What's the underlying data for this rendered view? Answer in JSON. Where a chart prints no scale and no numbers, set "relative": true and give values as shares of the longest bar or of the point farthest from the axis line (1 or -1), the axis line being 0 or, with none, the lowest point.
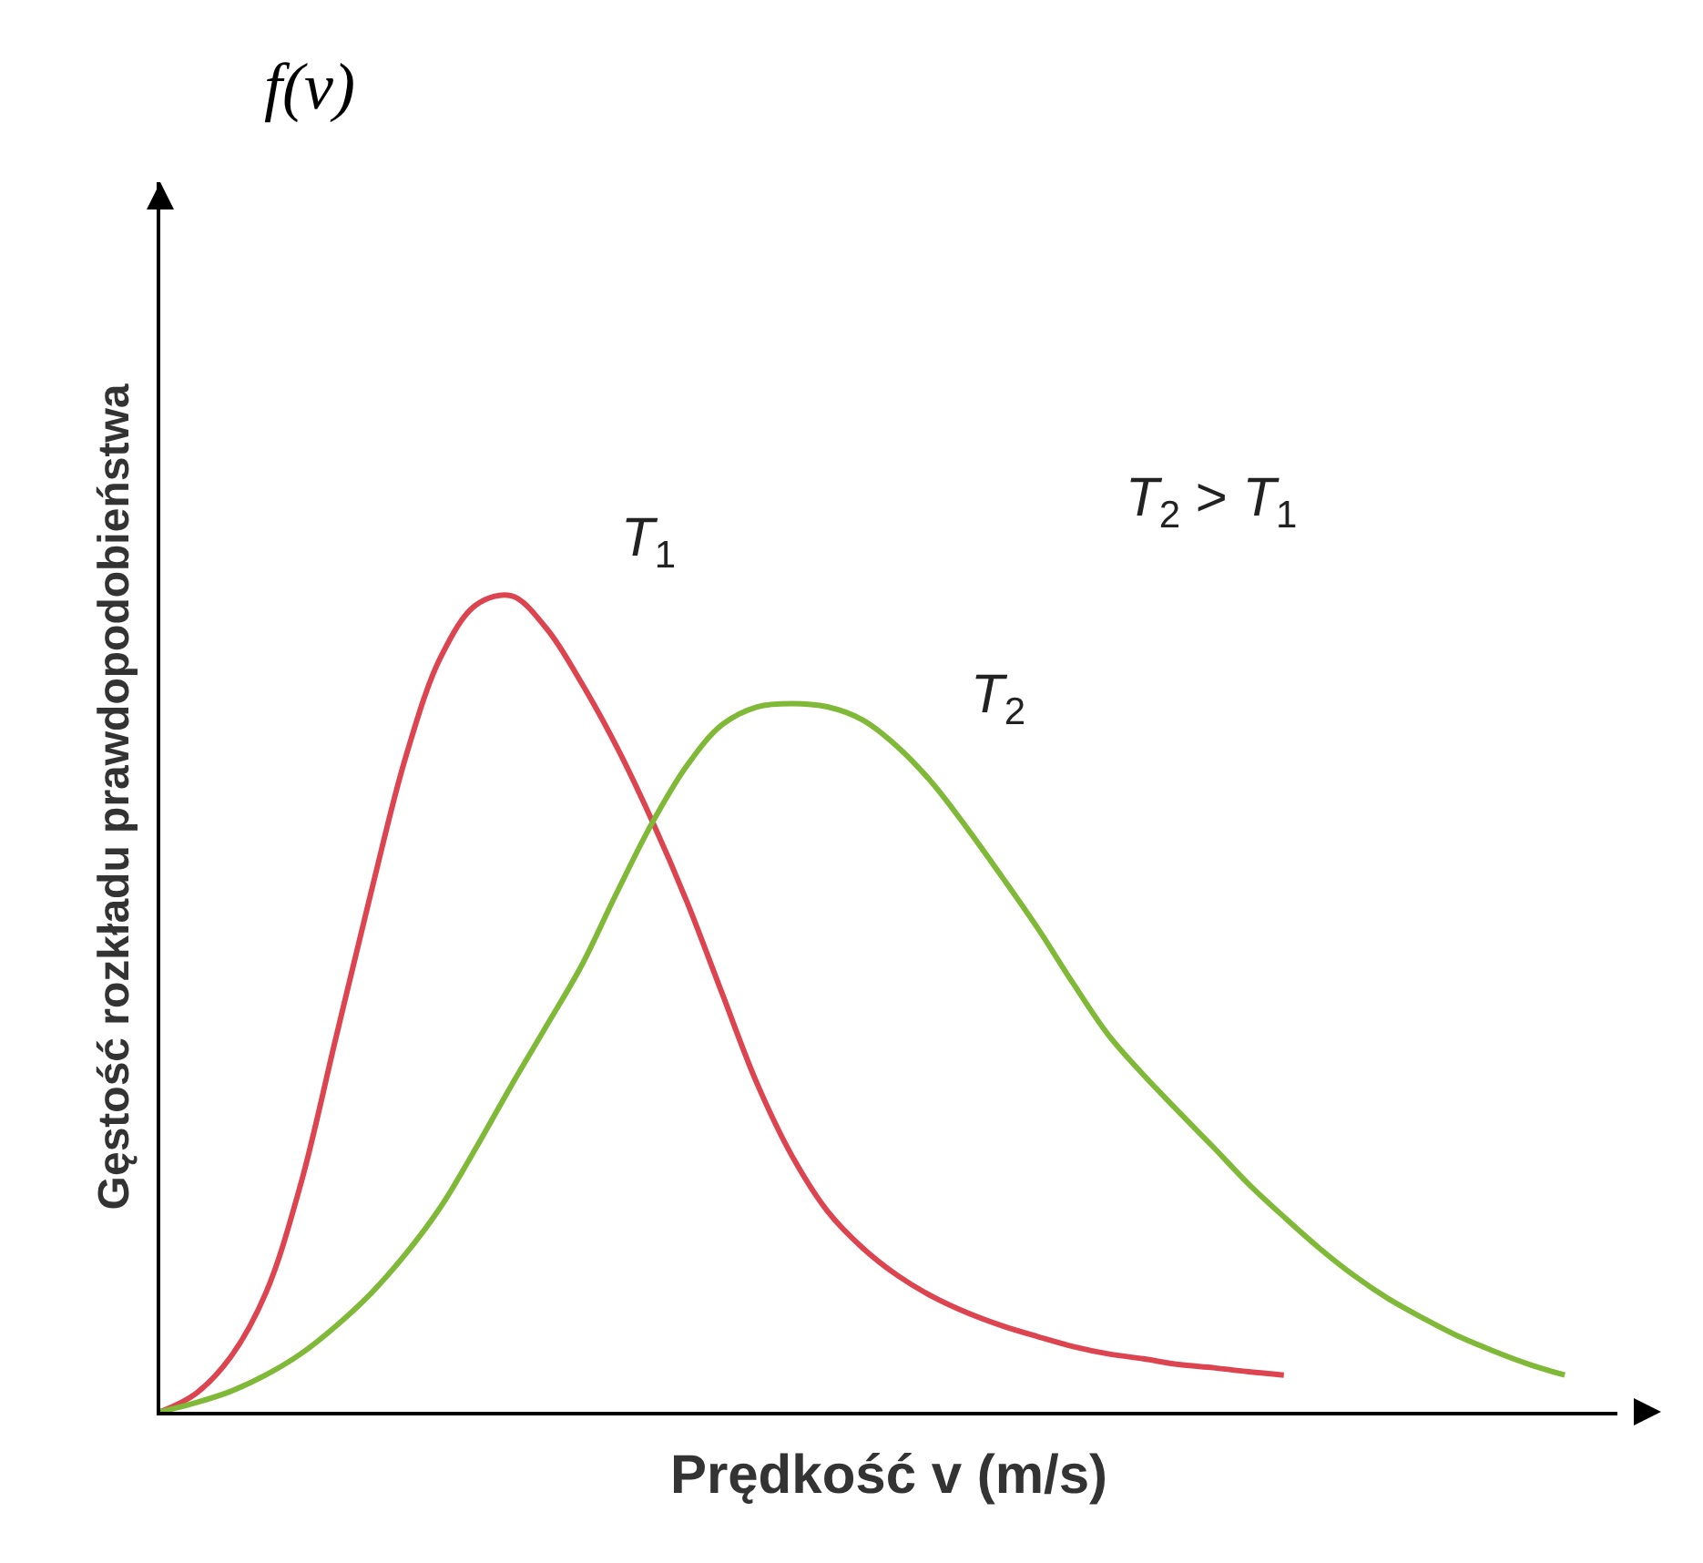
{
  "chart_data": {
    "type": "line",
    "relative": true,
    "title": "f(v)",
    "xlabel": "Prędkość v (m/s)",
    "ylabel": "Gęstość rozkładu prawdopodobieństwa",
    "annotations": [
      "T$_{2}$ > T$_{1}$"
    ],
    "categories": [
      null,
      null,
      null,
      null,
      null,
      null,
      null,
      null,
      null,
      null,
      null,
      null,
      null,
      null,
      null,
      null,
      null,
      null,
      null,
      null,
      null,
      null,
      null,
      null,
      null,
      null,
      null,
      null,
      null,
      null,
      null,
      null,
      null,
      null,
      null,
      null,
      null,
      null,
      null,
      null,
      null
    ],
    "marker": "none",
    "line_style": "solid",
    "legend": false,
    "series": [
      {
        "name": "T$_{1}$",
        "color": "#dc4450",
        "values": [
          0,
          0.022,
          0.067,
          0.145,
          0.279,
          0.458,
          0.636,
          0.804,
          0.926,
          0.989,
          1.0,
          0.96,
          0.893,
          0.815,
          0.725,
          0.625,
          0.513,
          0.402,
          0.313,
          0.246,
          0.201,
          0.167,
          0.141,
          0.121,
          0.105,
          0.092,
          0.08,
          0.071,
          0.065,
          0.058,
          0.054,
          0.049,
          0.045,
          null,
          null,
          null,
          null,
          null,
          null,
          null,
          null
        ]
      },
      {
        "name": "T$_{2}$",
        "color": "#80b838",
        "values": [
          0,
          0.011,
          0.025,
          0.045,
          0.071,
          0.105,
          0.145,
          0.194,
          0.252,
          0.324,
          0.4,
          0.473,
          0.547,
          0.636,
          0.721,
          0.792,
          0.842,
          0.864,
          0.868,
          0.864,
          0.848,
          0.815,
          0.77,
          0.714,
          0.654,
          0.592,
          0.525,
          0.462,
          0.413,
          0.368,
          0.324,
          0.279,
          0.239,
          0.201,
          0.167,
          0.138,
          0.114,
          0.092,
          0.074,
          0.058,
          0.045
        ]
      }
    ]
  }
}
